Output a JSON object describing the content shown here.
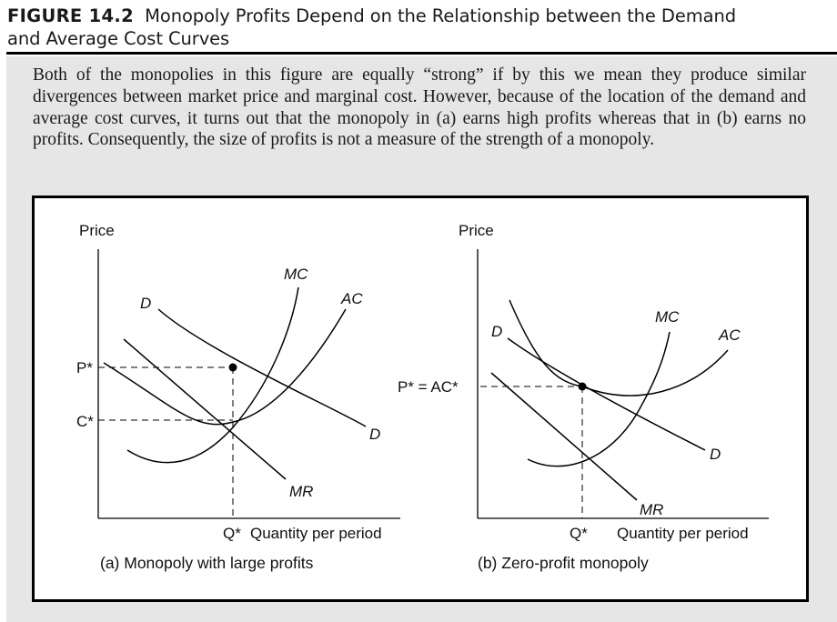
{
  "header": {
    "figure_label": "FIGURE 14.2",
    "title_line1": "Monopoly Profits Depend on the Relationship between the Demand",
    "title_line2": "and Average Cost Curves"
  },
  "caption": "Both of the monopolies in this figure are equally “strong” if by this we mean they produce similar divergences between market price and marginal cost. However, because of the location of the demand and average cost curves, it turns out that the monopoly in (a) earns high profits whereas that in (b) earns no profits. Consequently, the size of profits is not a measure of the strength of a monopoly.",
  "panel_a": {
    "y_axis_label": "Price",
    "x_axis_label": "Quantity per period",
    "q_label": "Q*",
    "p_label": "P*",
    "c_label": "C*",
    "curve_labels": {
      "mc": "MC",
      "ac": "AC",
      "d_top": "D",
      "d_end": "D",
      "mr": "MR"
    },
    "subcaption": "(a) Monopoly with large profits"
  },
  "panel_b": {
    "y_axis_label": "Price",
    "x_axis_label": "Quantity per period",
    "q_label": "Q*",
    "p_label": "P* = AC*",
    "curve_labels": {
      "mc": "MC",
      "ac": "AC",
      "d_top": "D",
      "d_end": "D",
      "mr": "MR"
    },
    "subcaption": "(b) Zero-profit monopoly"
  },
  "colors": {
    "panel_bg": "#e6e6e6",
    "ink": "#000000"
  }
}
